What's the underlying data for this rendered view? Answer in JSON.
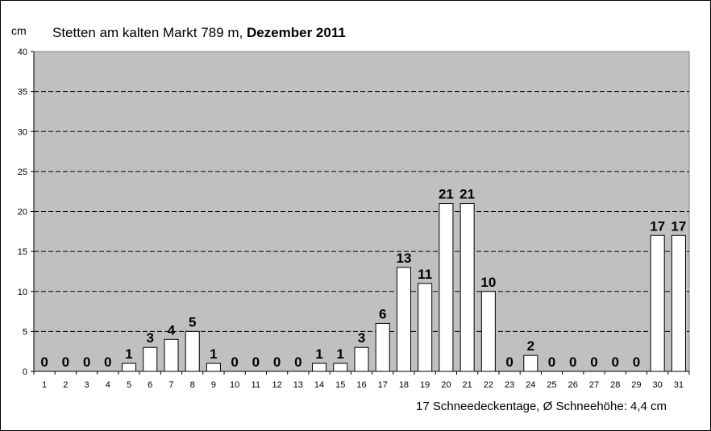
{
  "chart_data": {
    "type": "bar",
    "title": "Stetten am kalten Markt 789 m,",
    "title_bold": "Dezember 2011",
    "ylabel": "cm",
    "ylim": [
      0,
      40
    ],
    "yticks": [
      0,
      5,
      10,
      15,
      20,
      25,
      30,
      35,
      40
    ],
    "grid": "horizontal dashed",
    "background": "#c0c0c0",
    "bar_color": "#ffffff",
    "categories": [
      "1",
      "2",
      "3",
      "4",
      "5",
      "6",
      "7",
      "8",
      "9",
      "10",
      "11",
      "12",
      "13",
      "14",
      "15",
      "16",
      "17",
      "18",
      "19",
      "20",
      "21",
      "22",
      "23",
      "24",
      "25",
      "26",
      "27",
      "28",
      "29",
      "30",
      "31"
    ],
    "values": [
      0,
      0,
      0,
      0,
      1,
      3,
      4,
      5,
      1,
      0,
      0,
      0,
      0,
      1,
      1,
      3,
      6,
      13,
      11,
      21,
      21,
      10,
      0,
      2,
      0,
      0,
      0,
      0,
      0,
      17,
      17
    ],
    "footer": "17 Schneedeckentage,  Ø Schneehöhe:  4,4 cm"
  }
}
